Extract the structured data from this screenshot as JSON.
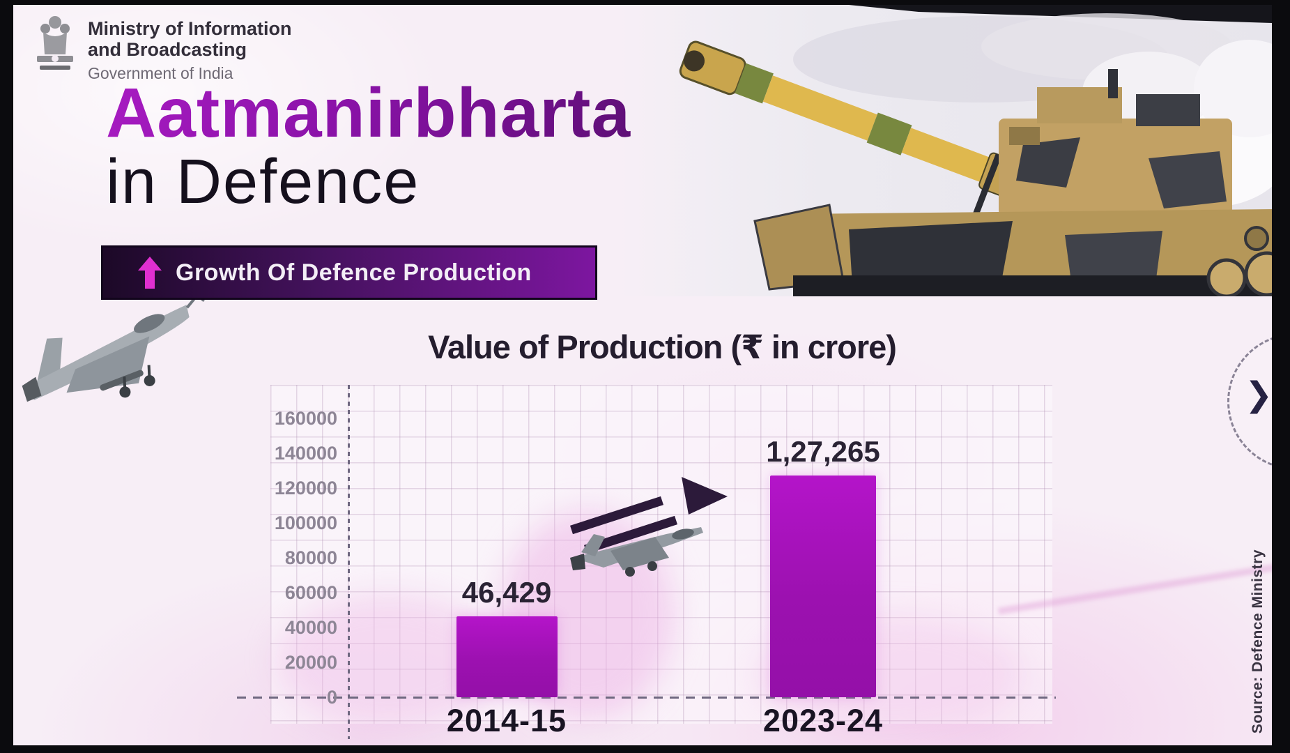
{
  "ministry": {
    "line1": "Ministry of Information",
    "line2": "and Broadcasting",
    "line3": "Government of India"
  },
  "hero": {
    "title_accent": "Aatmanirbharta",
    "title_rest": "in Defence"
  },
  "banner": {
    "label": "Growth Of Defence Production",
    "icon": "up-arrow-icon"
  },
  "chart_data": {
    "type": "bar",
    "title": "Value of Production (₹ in crore)",
    "categories": [
      "2014-15",
      "2023-24"
    ],
    "values": [
      46429,
      127265
    ],
    "value_labels": [
      "46,429",
      "1,27,265"
    ],
    "xlabel": "",
    "ylabel": "",
    "ylim": [
      0,
      160000
    ],
    "yticks": [
      0,
      20000,
      40000,
      60000,
      80000,
      100000,
      120000,
      140000,
      160000
    ],
    "grid": true,
    "legend": false,
    "bar_color": "#a512ba"
  },
  "decor": {
    "next_chevron": "❯"
  },
  "source": {
    "label": "Source: Defence Ministry"
  },
  "colors": {
    "accent_purple": "#8a12a8",
    "banner_dark": "#1c0927",
    "banner_bright": "#7d16a0",
    "arrow_pink": "#e02fd0",
    "bar": "#a512ba",
    "text_dark": "#241d2e",
    "tick_gray": "#8d8595",
    "background": "#f7eef6"
  }
}
